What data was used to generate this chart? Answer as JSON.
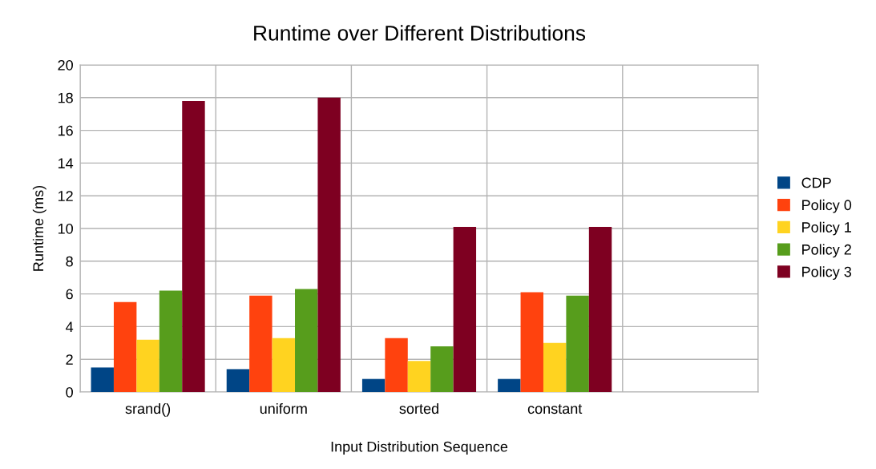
{
  "chart_data": {
    "type": "bar",
    "title": "Runtime over Different Distributions",
    "xlabel": "Input Distribution Sequence",
    "ylabel": "Runtime (ms)",
    "categories": [
      "srand()",
      "uniform",
      "sorted",
      "constant",
      null
    ],
    "series": [
      {
        "name": "CDP",
        "color": "#004586",
        "values": [
          1.5,
          1.4,
          0.8,
          0.8,
          null
        ]
      },
      {
        "name": "Policy 0",
        "color": "#ff420e",
        "values": [
          5.5,
          5.9,
          3.3,
          6.1,
          null
        ]
      },
      {
        "name": "Policy 1",
        "color": "#ffd320",
        "values": [
          3.2,
          3.3,
          1.9,
          3.0,
          null
        ]
      },
      {
        "name": "Policy 2",
        "color": "#579d1c",
        "values": [
          6.2,
          6.3,
          2.8,
          5.9,
          null
        ]
      },
      {
        "name": "Policy 3",
        "color": "#7e0021",
        "values": [
          17.8,
          18.0,
          10.1,
          10.1,
          null
        ]
      }
    ],
    "ylim": [
      0,
      20
    ],
    "yticks": [
      0,
      2,
      4,
      6,
      8,
      10,
      12,
      14,
      16,
      18,
      20
    ],
    "grid": true,
    "legend": "right"
  }
}
